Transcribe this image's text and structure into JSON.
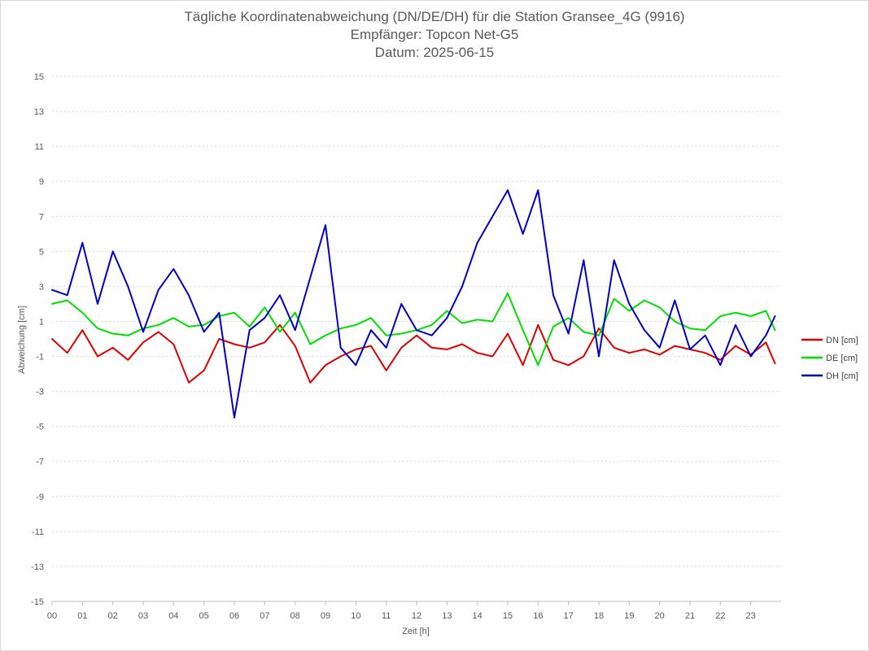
{
  "chart_data": {
    "type": "line",
    "title": "Tägliche Koordinatenabweichung (DN/DE/DH) für die Station Gransee_4G (9916)",
    "subtitle": "Empfänger: Topcon Net-G5",
    "date_line": "Datum: 2025-06-15",
    "xlabel": "Zeit [h]",
    "ylabel": "Abweichung [cm]",
    "ylim": [
      -15,
      15
    ],
    "xlim": [
      0,
      24
    ],
    "grid": true,
    "legend_position": "right",
    "x_tick_labels": [
      "00",
      "01",
      "02",
      "03",
      "04",
      "05",
      "06",
      "07",
      "08",
      "09",
      "10",
      "11",
      "12",
      "13",
      "14",
      "15",
      "16",
      "17",
      "18",
      "19",
      "20",
      "21",
      "22",
      "23"
    ],
    "y_ticks": [
      15,
      13,
      11,
      9,
      7,
      5,
      3,
      1,
      -1,
      -3,
      -5,
      -7,
      -9,
      -11,
      -13,
      -15
    ],
    "x": [
      0.0,
      0.5,
      1.0,
      1.5,
      2.0,
      2.5,
      3.0,
      3.5,
      4.0,
      4.5,
      5.0,
      5.5,
      6.0,
      6.5,
      7.0,
      7.5,
      8.0,
      8.5,
      9.0,
      9.5,
      10.0,
      10.5,
      11.0,
      11.5,
      12.0,
      12.5,
      13.0,
      13.5,
      14.0,
      14.5,
      15.0,
      15.5,
      16.0,
      16.5,
      17.0,
      17.5,
      18.0,
      18.5,
      19.0,
      19.5,
      20.0,
      20.5,
      21.0,
      21.5,
      22.0,
      22.5,
      23.0,
      23.5,
      23.8
    ],
    "series": [
      {
        "name": "DN [cm]",
        "color": "#e00000",
        "values": [
          0.0,
          -0.8,
          0.5,
          -1.0,
          -0.5,
          -1.2,
          -0.2,
          0.4,
          -0.3,
          -2.5,
          -1.8,
          0.0,
          -0.3,
          -0.5,
          -0.2,
          0.8,
          -0.4,
          -2.5,
          -1.5,
          -1.0,
          -0.6,
          -0.4,
          -1.8,
          -0.5,
          0.2,
          -0.5,
          -0.6,
          -0.3,
          -0.8,
          -1.0,
          0.3,
          -1.5,
          0.8,
          -1.2,
          -1.5,
          -1.0,
          0.6,
          -0.5,
          -0.8,
          -0.6,
          -0.9,
          -0.4,
          -0.6,
          -0.8,
          -1.2,
          -0.4,
          -0.9,
          -0.2,
          -1.4
        ]
      },
      {
        "name": "DE [cm]",
        "color": "#00e000",
        "values": [
          2.0,
          2.2,
          1.5,
          0.6,
          0.3,
          0.2,
          0.6,
          0.8,
          1.2,
          0.7,
          0.8,
          1.3,
          1.5,
          0.7,
          1.8,
          0.4,
          1.5,
          -0.3,
          0.2,
          0.6,
          0.8,
          1.2,
          0.2,
          0.3,
          0.5,
          0.8,
          1.6,
          0.9,
          1.1,
          1.0,
          2.6,
          0.5,
          -1.5,
          0.7,
          1.2,
          0.4,
          0.2,
          2.3,
          1.6,
          2.2,
          1.8,
          1.0,
          0.6,
          0.5,
          1.3,
          1.5,
          1.3,
          1.6,
          0.5
        ]
      },
      {
        "name": "DH [cm]",
        "color": "#0000cc",
        "values": [
          2.8,
          2.5,
          5.5,
          2.0,
          5.0,
          3.0,
          0.4,
          2.8,
          4.0,
          2.5,
          0.4,
          1.5,
          -4.5,
          0.5,
          1.2,
          2.5,
          0.5,
          3.5,
          6.5,
          -0.5,
          -1.5,
          0.5,
          -0.5,
          2.0,
          0.5,
          0.2,
          1.2,
          3.0,
          5.5,
          7.0,
          8.5,
          6.0,
          8.5,
          2.5,
          0.3,
          4.5,
          -1.0,
          4.5,
          2.0,
          0.5,
          -0.5,
          2.2,
          -0.6,
          0.2,
          -1.5,
          0.8,
          -1.0,
          0.2,
          1.3
        ]
      }
    ]
  }
}
